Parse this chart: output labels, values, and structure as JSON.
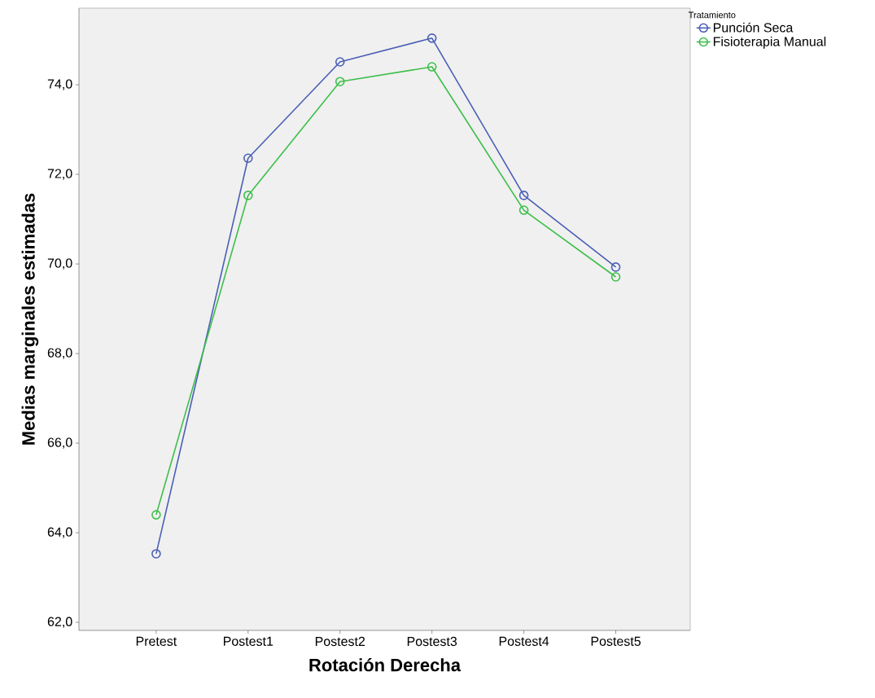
{
  "chart_data": {
    "type": "line",
    "xlabel": "Rotación Derecha",
    "ylabel": "Medias marginales estimadas",
    "legend_title": "Tratamiento",
    "legend": "top right",
    "marker": "circle",
    "categories": [
      "Pretest",
      "Postest1",
      "Postest2",
      "Postest3",
      "Postest4",
      "Postest5"
    ],
    "series": [
      {
        "name": "Punción Seca",
        "color": "#4a5fb5",
        "values": [
          63.53,
          72.36,
          74.51,
          75.04,
          71.53,
          69.93
        ]
      },
      {
        "name": "Fisioterapia Manual",
        "color": "#3dbf4a",
        "values": [
          64.4,
          71.53,
          74.07,
          74.4,
          71.2,
          69.71
        ]
      }
    ],
    "ylim": [
      61.82,
      75.71
    ],
    "yticks": [
      {
        "value": 62,
        "label": "62,0"
      },
      {
        "value": 64,
        "label": "64,0"
      },
      {
        "value": 66,
        "label": "66,0"
      },
      {
        "value": 68,
        "label": "68,0"
      },
      {
        "value": 70,
        "label": "70,0"
      },
      {
        "value": 72,
        "label": "72,0"
      },
      {
        "value": 74,
        "label": "74,0"
      }
    ]
  }
}
